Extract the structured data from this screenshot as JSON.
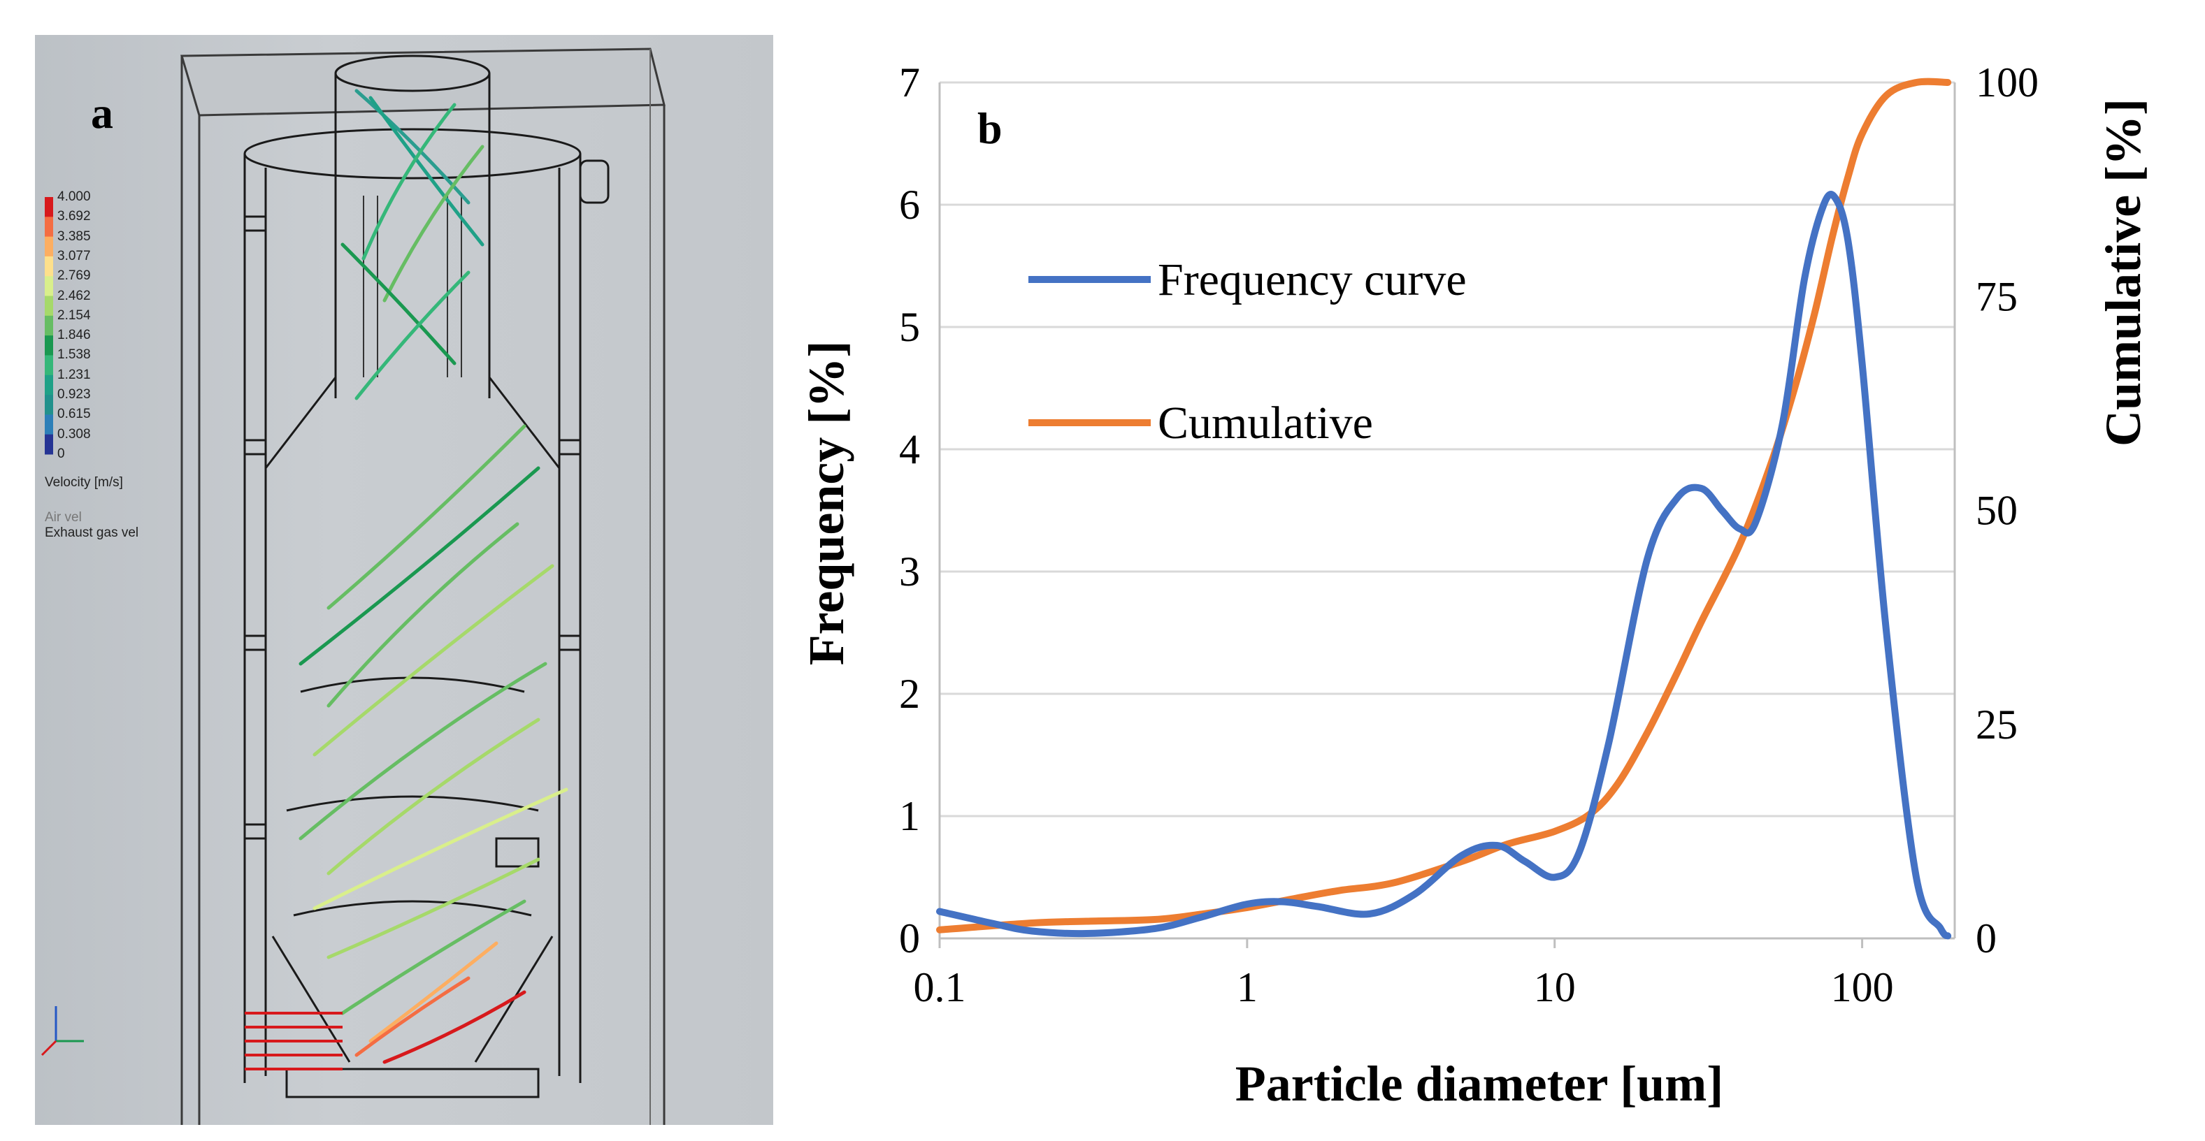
{
  "panel_a": {
    "label": "a",
    "colorbar": {
      "title": "Velocity [m/s]",
      "ticks": [
        "4.000",
        "3.692",
        "3.385",
        "3.077",
        "2.769",
        "2.462",
        "2.154",
        "1.846",
        "1.538",
        "1.231",
        "0.923",
        "0.615",
        "0.308",
        "0"
      ],
      "colors": [
        "#d7191c",
        "#f46d43",
        "#fdae61",
        "#fee08b",
        "#d9ef8b",
        "#a6d96a",
        "#66bd63",
        "#1a9850",
        "#35b779",
        "#1fa187",
        "#21918c",
        "#2c7fb8",
        "#253494"
      ]
    },
    "subtitle_1": "Air vel",
    "subtitle_2": "Exhaust gas vel"
  },
  "panel_b": {
    "label": "b",
    "chart_data": {
      "type": "line",
      "xlabel": "Particle diameter [um]",
      "ylabel": "Frequency [%]",
      "y2label": "Cumulative [%]",
      "xscale": "log",
      "xlim": [
        0.1,
        200
      ],
      "xticks": [
        "0.1",
        "1",
        "10",
        "100"
      ],
      "ylim": [
        0,
        7
      ],
      "yticks": [
        "0",
        "1",
        "2",
        "3",
        "4",
        "5",
        "6",
        "7"
      ],
      "y2lim": [
        0,
        100
      ],
      "y2ticks": [
        "0",
        "25",
        "50",
        "75",
        "100"
      ],
      "grid": "horizontal",
      "legend_position": "upper-left",
      "series": [
        {
          "name": "Frequency curve",
          "axis": "left",
          "color": "#4472c4",
          "x": [
            0.1,
            0.15,
            0.2,
            0.3,
            0.5,
            0.7,
            1.0,
            1.3,
            1.7,
            2.5,
            3.5,
            5,
            6.5,
            8,
            10,
            12,
            15,
            20,
            25,
            30,
            35,
            40,
            45,
            55,
            65,
            75,
            82,
            90,
            100,
            120,
            150,
            180,
            190
          ],
          "y": [
            0.22,
            0.12,
            0.06,
            0.04,
            0.08,
            0.17,
            0.28,
            0.3,
            0.26,
            0.2,
            0.36,
            0.68,
            0.76,
            0.63,
            0.5,
            0.7,
            1.6,
            3.1,
            3.6,
            3.68,
            3.5,
            3.35,
            3.4,
            4.2,
            5.4,
            6.0,
            6.05,
            5.7,
            4.7,
            2.5,
            0.5,
            0.08,
            0.02
          ]
        },
        {
          "name": "Cumulative",
          "axis": "right",
          "color": "#ed7d31",
          "x": [
            0.1,
            0.2,
            0.3,
            0.5,
            0.7,
            1.0,
            1.5,
            2,
            3,
            5,
            7,
            10,
            13,
            16,
            20,
            25,
            30,
            40,
            50,
            60,
            70,
            80,
            90,
            100,
            120,
            150,
            190
          ],
          "y": [
            1.0,
            1.8,
            2.0,
            2.2,
            2.8,
            3.6,
            4.8,
            5.6,
            6.5,
            9.0,
            11.0,
            12.5,
            14.5,
            18.0,
            24.0,
            31.0,
            37.0,
            46.0,
            55.0,
            64.0,
            73.0,
            82.0,
            89.0,
            94.0,
            98.5,
            100.0,
            100.0
          ]
        }
      ]
    }
  }
}
